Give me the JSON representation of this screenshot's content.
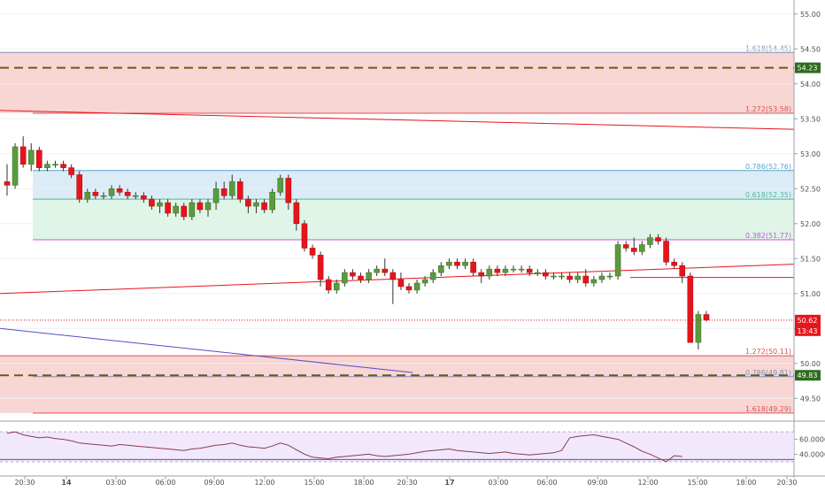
{
  "chart_data": {
    "type": "candlestick",
    "title": "",
    "xlabel": "",
    "ylabel": "",
    "ylim": [
      49.2,
      55.2
    ],
    "y_ticks": [
      "55.00",
      "54.50",
      "54.00",
      "53.50",
      "53.00",
      "52.50",
      "52.00",
      "51.50",
      "51.00",
      "50.50",
      "50.00",
      "49.50"
    ],
    "x_ticks": [
      "20:30",
      "14",
      "03:00",
      "06:00",
      "09:00",
      "12:00",
      "15:00",
      "18:00",
      "20:30",
      "17",
      "03:00",
      "06:00",
      "09:00",
      "12:00",
      "15:00",
      "18:00",
      "20:30"
    ],
    "bull_color": "#5b9a3f",
    "bear_color": "#e8141b",
    "candles": [
      [
        52.6,
        52.85,
        52.4,
        52.55
      ],
      [
        52.55,
        53.15,
        52.5,
        53.1
      ],
      [
        53.1,
        53.25,
        52.8,
        52.85
      ],
      [
        52.85,
        53.15,
        52.75,
        53.05
      ],
      [
        53.05,
        53.1,
        52.75,
        52.8
      ],
      [
        52.8,
        52.9,
        52.75,
        52.85
      ],
      [
        52.85,
        52.9,
        52.8,
        52.85
      ],
      [
        52.85,
        52.9,
        52.75,
        52.8
      ],
      [
        52.8,
        52.85,
        52.65,
        52.7
      ],
      [
        52.7,
        52.75,
        52.3,
        52.35
      ],
      [
        52.35,
        52.5,
        52.3,
        52.45
      ],
      [
        52.45,
        52.5,
        52.35,
        52.4
      ],
      [
        52.4,
        52.45,
        52.35,
        52.4
      ],
      [
        52.4,
        52.55,
        52.35,
        52.5
      ],
      [
        52.5,
        52.55,
        52.4,
        52.45
      ],
      [
        52.45,
        52.5,
        52.35,
        52.4
      ],
      [
        52.4,
        52.45,
        52.35,
        52.4
      ],
      [
        52.4,
        52.45,
        52.3,
        52.35
      ],
      [
        52.35,
        52.4,
        52.2,
        52.25
      ],
      [
        52.25,
        52.35,
        52.15,
        52.3
      ],
      [
        52.3,
        52.35,
        52.1,
        52.15
      ],
      [
        52.15,
        52.3,
        52.1,
        52.25
      ],
      [
        52.25,
        52.3,
        52.05,
        52.1
      ],
      [
        52.1,
        52.35,
        52.05,
        52.3
      ],
      [
        52.3,
        52.35,
        52.15,
        52.2
      ],
      [
        52.2,
        52.35,
        52.1,
        52.3
      ],
      [
        52.3,
        52.6,
        52.2,
        52.5
      ],
      [
        52.5,
        52.6,
        52.35,
        52.4
      ],
      [
        52.4,
        52.7,
        52.35,
        52.6
      ],
      [
        52.6,
        52.65,
        52.3,
        52.35
      ],
      [
        52.35,
        52.4,
        52.15,
        52.25
      ],
      [
        52.25,
        52.35,
        52.15,
        52.3
      ],
      [
        52.3,
        52.35,
        52.15,
        52.2
      ],
      [
        52.2,
        52.5,
        52.15,
        52.45
      ],
      [
        52.45,
        52.7,
        52.4,
        52.65
      ],
      [
        52.65,
        52.7,
        52.2,
        52.3
      ],
      [
        52.3,
        52.35,
        51.9,
        52.0
      ],
      [
        52.0,
        52.05,
        51.6,
        51.65
      ],
      [
        51.65,
        51.7,
        51.5,
        51.55
      ],
      [
        51.55,
        51.6,
        51.1,
        51.2
      ],
      [
        51.2,
        51.25,
        51.0,
        51.05
      ],
      [
        51.05,
        51.2,
        51.0,
        51.15
      ],
      [
        51.15,
        51.35,
        51.1,
        51.3
      ],
      [
        51.3,
        51.35,
        51.2,
        51.25
      ],
      [
        51.25,
        51.3,
        51.15,
        51.2
      ],
      [
        51.2,
        51.35,
        51.15,
        51.3
      ],
      [
        51.3,
        51.4,
        51.25,
        51.35
      ],
      [
        51.35,
        51.5,
        51.25,
        51.3
      ],
      [
        51.3,
        51.35,
        50.85,
        51.2
      ],
      [
        51.2,
        51.3,
        51.05,
        51.1
      ],
      [
        51.1,
        51.15,
        51.0,
        51.05
      ],
      [
        51.05,
        51.2,
        51.0,
        51.15
      ],
      [
        51.15,
        51.25,
        51.1,
        51.2
      ],
      [
        51.2,
        51.35,
        51.15,
        51.3
      ],
      [
        51.3,
        51.45,
        51.25,
        51.4
      ],
      [
        51.4,
        51.5,
        51.35,
        51.45
      ],
      [
        51.45,
        51.5,
        51.35,
        51.4
      ],
      [
        51.4,
        51.5,
        51.35,
        51.45
      ],
      [
        51.45,
        51.5,
        51.25,
        51.3
      ],
      [
        51.3,
        51.35,
        51.15,
        51.25
      ],
      [
        51.25,
        51.4,
        51.2,
        51.35
      ],
      [
        51.35,
        51.4,
        51.25,
        51.3
      ],
      [
        51.3,
        51.4,
        51.25,
        51.35
      ],
      [
        51.35,
        51.4,
        51.3,
        51.35
      ],
      [
        51.35,
        51.4,
        51.3,
        51.35
      ],
      [
        51.35,
        51.4,
        51.25,
        51.3
      ],
      [
        51.3,
        51.35,
        51.25,
        51.3
      ],
      [
        51.3,
        51.35,
        51.2,
        51.25
      ],
      [
        51.25,
        51.3,
        51.2,
        51.25
      ],
      [
        51.25,
        51.3,
        51.2,
        51.25
      ],
      [
        51.25,
        51.3,
        51.15,
        51.2
      ],
      [
        51.2,
        51.3,
        51.15,
        51.25
      ],
      [
        51.25,
        51.35,
        51.1,
        51.15
      ],
      [
        51.15,
        51.25,
        51.1,
        51.2
      ],
      [
        51.2,
        51.3,
        51.15,
        51.25
      ],
      [
        51.25,
        51.3,
        51.2,
        51.25
      ],
      [
        51.25,
        51.75,
        51.2,
        51.7
      ],
      [
        51.7,
        51.75,
        51.6,
        51.65
      ],
      [
        51.65,
        51.8,
        51.55,
        51.6
      ],
      [
        51.6,
        51.75,
        51.55,
        51.7
      ],
      [
        51.7,
        51.85,
        51.65,
        51.8
      ],
      [
        51.8,
        51.85,
        51.7,
        51.75
      ],
      [
        51.75,
        51.8,
        51.4,
        51.45
      ],
      [
        51.45,
        51.5,
        51.35,
        51.4
      ],
      [
        51.4,
        51.45,
        51.15,
        51.25
      ],
      [
        51.25,
        51.3,
        50.3,
        50.3
      ],
      [
        50.3,
        50.75,
        50.2,
        50.7
      ],
      [
        50.7,
        50.75,
        50.6,
        50.62
      ]
    ],
    "zones": [
      {
        "label": "1.618(54.45)",
        "y1": 54.45,
        "y2": 53.58,
        "fill": "#f4c8c6",
        "line": "#7d93b6"
      },
      {
        "label": "1.272(53.58)",
        "y1": 53.58,
        "y2": 53.58,
        "fill": "",
        "line": "#e05050"
      },
      {
        "label": "0.786(52.76)",
        "y1": 52.76,
        "y2": 52.35,
        "fill": "#cfe6f3",
        "line": "#5ba3c8"
      },
      {
        "label": "0.618(52.35)",
        "y1": 52.35,
        "y2": 51.77,
        "fill": "#d4f1df",
        "line": "#4db89a"
      },
      {
        "label": "0.382(51.77)",
        "y1": 51.77,
        "y2": 51.77,
        "fill": "",
        "line": "#d052d8"
      },
      {
        "label": "1.272(50.11)",
        "y1": 50.11,
        "y2": 49.29,
        "fill": "#f4c8c6",
        "line": "#e05050"
      },
      {
        "label": "0.786(49.81)",
        "y1": 49.81,
        "y2": 49.81,
        "fill": "",
        "line": "#7d93b6"
      },
      {
        "label": "1.618(49.29)",
        "y1": 49.29,
        "y2": 49.29,
        "fill": "",
        "line": "#e05050"
      }
    ],
    "dashed_levels": [
      {
        "value": 54.23,
        "label": "54.23"
      },
      {
        "value": 49.83,
        "label": "49.83"
      }
    ],
    "trendlines": [
      {
        "from": [
          53.62,
          0
        ],
        "to": [
          53.35,
          1
        ],
        "color": "#e8141b"
      },
      {
        "from": [
          51.0,
          0
        ],
        "to": [
          51.42,
          1
        ],
        "color": "#e8141b"
      },
      {
        "from": [
          50.5,
          0
        ],
        "to": [
          49.87,
          0.52
        ],
        "color": "#5a4bc8"
      }
    ],
    "current_price": {
      "value": 50.62,
      "label": "50.62",
      "countdown": "13:43",
      "color": "#e8141b"
    },
    "indicator": {
      "type": "rsi",
      "y_ticks": [
        "60.0000",
        "40.0000"
      ],
      "upper_band": 70,
      "lower_band": 30,
      "values": [
        68,
        70,
        66,
        64,
        62,
        63,
        61,
        60,
        58,
        55,
        54,
        53,
        52,
        51,
        53,
        52,
        51,
        50,
        49,
        48,
        47,
        46,
        45,
        47,
        48,
        50,
        52,
        53,
        55,
        52,
        50,
        49,
        48,
        51,
        55,
        52,
        46,
        40,
        36,
        35,
        34,
        36,
        37,
        38,
        39,
        40,
        38,
        37,
        38,
        39,
        40,
        42,
        44,
        45,
        46,
        47,
        45,
        44,
        43,
        42,
        41,
        42,
        43,
        41,
        40,
        39,
        40,
        41,
        42,
        45,
        62,
        64,
        65,
        66,
        64,
        62,
        60,
        55,
        50,
        44,
        40,
        35,
        30,
        38,
        37
      ]
    }
  }
}
